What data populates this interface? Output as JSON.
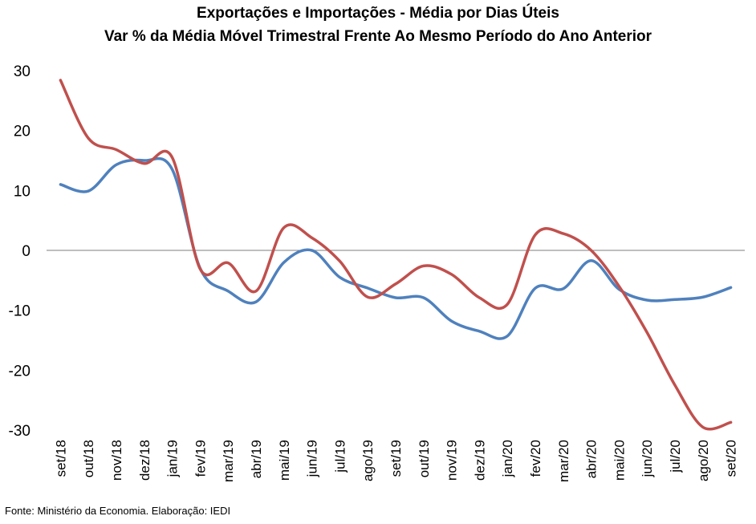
{
  "chart_data": {
    "type": "line",
    "title": "Exportações e Importações - Média por Dias Úteis",
    "subtitle": "Var % da Média Móvel Trimestral Frente Ao Mesmo Período do Ano Anterior",
    "categories": [
      "set/18",
      "out/18",
      "nov/18",
      "dez/18",
      "jan/19",
      "fev/19",
      "mar/19",
      "abr/19",
      "mai/19",
      "jun/19",
      "jul/19",
      "ago/19",
      "set/19",
      "out/19",
      "nov/19",
      "dez/19",
      "jan/20",
      "fev/20",
      "mar/20",
      "abr/20",
      "mai/20",
      "jun/20",
      "jul/20",
      "ago/20",
      "set/20"
    ],
    "series": [
      {
        "color": "#4F81BD",
        "values": [
          11.0,
          9.9,
          14.3,
          15.0,
          13.5,
          -3.0,
          -6.8,
          -8.6,
          -2.0,
          0.0,
          -4.5,
          -6.3,
          -7.9,
          -7.9,
          -11.8,
          -13.5,
          -14.3,
          -6.3,
          -6.4,
          -1.7,
          -6.5,
          -8.3,
          -8.2,
          -7.8,
          -6.2
        ]
      },
      {
        "color": "#C0504D",
        "values": [
          28.4,
          18.7,
          16.8,
          14.5,
          15.5,
          -3.1,
          -2.1,
          -6.8,
          3.8,
          2.1,
          -1.8,
          -7.8,
          -5.6,
          -2.6,
          -4.0,
          -7.9,
          -9.0,
          2.6,
          2.8,
          0.0,
          -6.0,
          -13.7,
          -22.5,
          -29.5,
          -28.7
        ]
      }
    ],
    "ylim": [
      -30,
      30
    ],
    "yticks": [
      30,
      20,
      10,
      0,
      -10,
      -20,
      -30
    ],
    "grid": false,
    "legend": "none"
  },
  "footer": {
    "source": "Fonte: Ministério da Economia. Elaboração: IEDI"
  }
}
